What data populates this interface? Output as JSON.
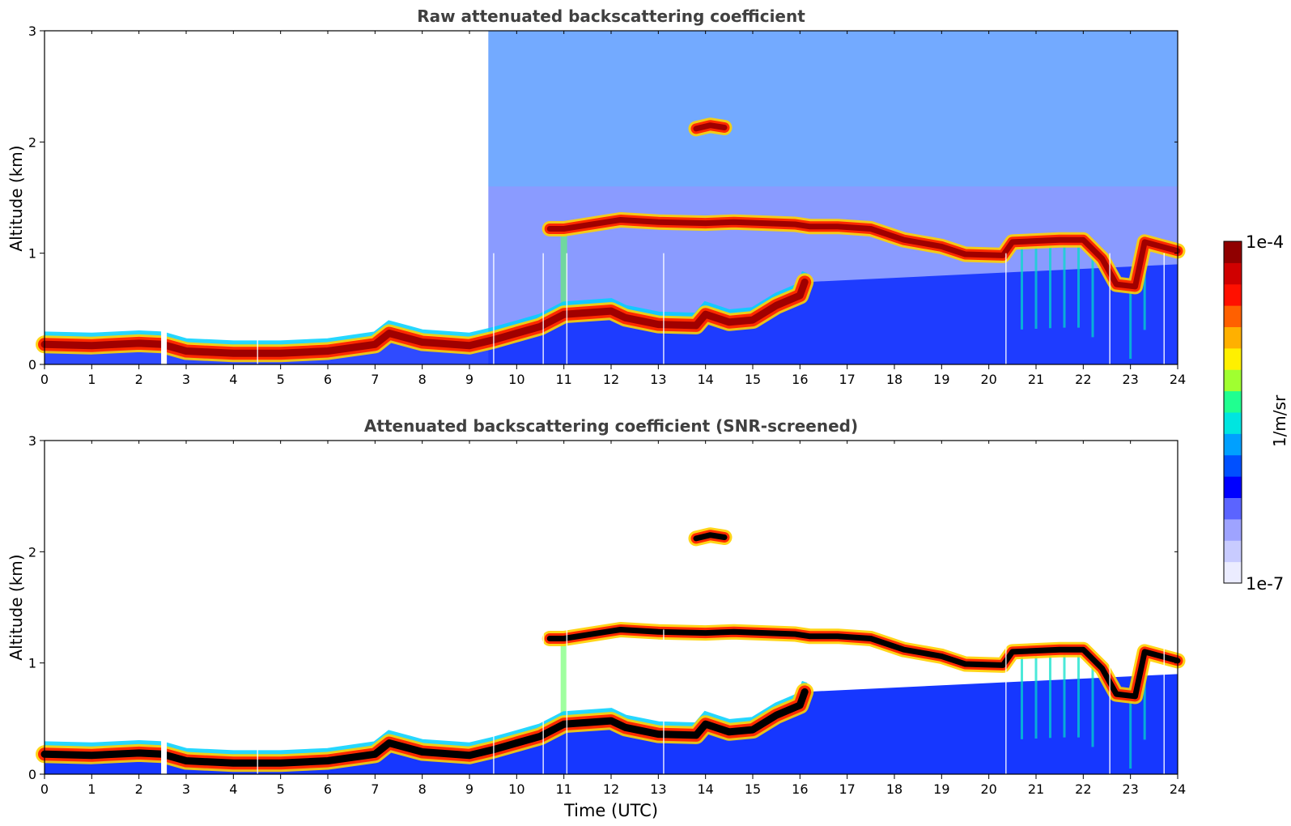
{
  "chart_data": [
    {
      "type": "heatmap",
      "title": "Raw attenuated backscattering coefficient",
      "xlabel": "",
      "ylabel": "Altitude (km)",
      "xlim": [
        0,
        24
      ],
      "ylim": [
        0,
        3
      ],
      "xticks": [
        "0",
        "1",
        "2",
        "3",
        "4",
        "5",
        "6",
        "7",
        "8",
        "9",
        "10",
        "11",
        "12",
        "13",
        "14",
        "15",
        "16",
        "17",
        "18",
        "19",
        "20",
        "21",
        "22",
        "23",
        "24"
      ],
      "yticks": [
        "0",
        "1",
        "2",
        "3"
      ],
      "screened": false,
      "layers": [
        {
          "kind": "boundary-layer",
          "points": [
            [
              0,
              0.18
            ],
            [
              1,
              0.17
            ],
            [
              2,
              0.19
            ],
            [
              2.5,
              0.18
            ],
            [
              3,
              0.12
            ],
            [
              4,
              0.1
            ],
            [
              5,
              0.1
            ],
            [
              6,
              0.12
            ],
            [
              7,
              0.18
            ],
            [
              7.3,
              0.28
            ],
            [
              8,
              0.2
            ],
            [
              9,
              0.17
            ],
            [
              9.5,
              0.22
            ],
            [
              10,
              0.28
            ],
            [
              10.5,
              0.34
            ],
            [
              11,
              0.45
            ],
            [
              12,
              0.48
            ],
            [
              12.3,
              0.42
            ],
            [
              13,
              0.36
            ],
            [
              13.8,
              0.35
            ],
            [
              14,
              0.45
            ],
            [
              14.5,
              0.38
            ],
            [
              15,
              0.4
            ],
            [
              15.5,
              0.53
            ],
            [
              16,
              0.62
            ],
            [
              16.1,
              0.74
            ]
          ]
        },
        {
          "kind": "cloud",
          "points": [
            [
              10.7,
              1.22
            ],
            [
              11,
              1.22
            ],
            [
              11.9,
              1.28
            ],
            [
              12.2,
              1.3
            ],
            [
              13,
              1.28
            ],
            [
              14,
              1.27
            ],
            [
              14.6,
              1.28
            ],
            [
              15.9,
              1.26
            ],
            [
              16.2,
              1.24
            ],
            [
              16.8,
              1.24
            ],
            [
              17.5,
              1.22
            ],
            [
              18.2,
              1.12
            ],
            [
              19,
              1.06
            ],
            [
              19.5,
              0.99
            ],
            [
              20.3,
              0.98
            ],
            [
              20.5,
              1.1
            ],
            [
              21.5,
              1.12
            ],
            [
              22,
              1.12
            ],
            [
              22.4,
              0.95
            ],
            [
              22.7,
              0.72
            ],
            [
              23.1,
              0.7
            ],
            [
              23.3,
              1.1
            ],
            [
              24,
              1.02
            ]
          ]
        },
        {
          "kind": "cloud",
          "points": [
            [
              13.8,
              2.12
            ],
            [
              14.1,
              2.15
            ],
            [
              14.4,
              2.13
            ]
          ]
        }
      ],
      "colorbar": {
        "min_label": "1e-7",
        "max_label": "1e-4",
        "label": "1/m/sr",
        "colors": [
          "#ebecff",
          "#c8cbff",
          "#9ea3ff",
          "#5b64ff",
          "#0000ff",
          "#0050ff",
          "#00a0ff",
          "#00e5e0",
          "#20ff90",
          "#a0ff30",
          "#fff000",
          "#ffb000",
          "#ff6000",
          "#ff1000",
          "#d00000",
          "#900000"
        ]
      }
    },
    {
      "type": "heatmap",
      "title": "Attenuated backscattering coefficient (SNR-screened)",
      "xlabel": "Time (UTC)",
      "ylabel": "Altitude (km)",
      "xlim": [
        0,
        24
      ],
      "ylim": [
        0,
        3
      ],
      "xticks": [
        "0",
        "1",
        "2",
        "3",
        "4",
        "5",
        "6",
        "7",
        "8",
        "9",
        "10",
        "11",
        "12",
        "13",
        "14",
        "15",
        "16",
        "17",
        "18",
        "19",
        "20",
        "21",
        "22",
        "23",
        "24"
      ],
      "yticks": [
        "0",
        "1",
        "2",
        "3"
      ],
      "screened": true
    }
  ]
}
